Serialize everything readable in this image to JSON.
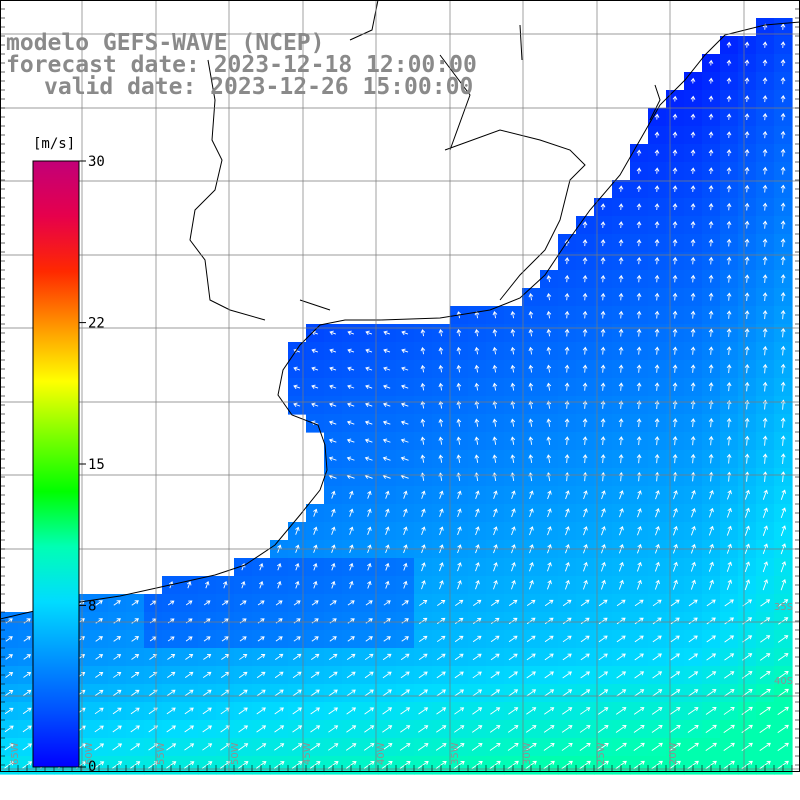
{
  "header": {
    "model": "modelo GEFS-WAVE (NCEP)",
    "forecast": "forecast date: 2023-12-18 12:00:00",
    "valid": "valid date: 2023-12-26 15:00:00"
  },
  "colorbar": {
    "unit": "[m/s]",
    "ticks": [
      {
        "value": 30,
        "label": "30"
      },
      {
        "value": 22,
        "label": "22"
      },
      {
        "value": 15,
        "label": "15"
      },
      {
        "value": 8,
        "label": "8"
      },
      {
        "value": 0,
        "label": "0"
      }
    ],
    "range": [
      0,
      30
    ],
    "colors": [
      "#0000ff",
      "#0050ff",
      "#0096ff",
      "#00dcff",
      "#00ffb4",
      "#00ff00",
      "#7cff00",
      "#ffff00",
      "#ff9600",
      "#ff2800",
      "#e6004c",
      "#c20078"
    ]
  },
  "map": {
    "lon_labels": [
      "65W",
      "60W",
      "55W",
      "50W",
      "45W",
      "40W",
      "35W",
      "30W",
      "25W",
      "20W"
    ],
    "lat_labels": [
      "35S",
      "40S"
    ],
    "land_color": "#ffffff",
    "coastline_color": "#000000",
    "grid_color": "#7a7a7a",
    "arrow_color": "#ffffff"
  }
}
